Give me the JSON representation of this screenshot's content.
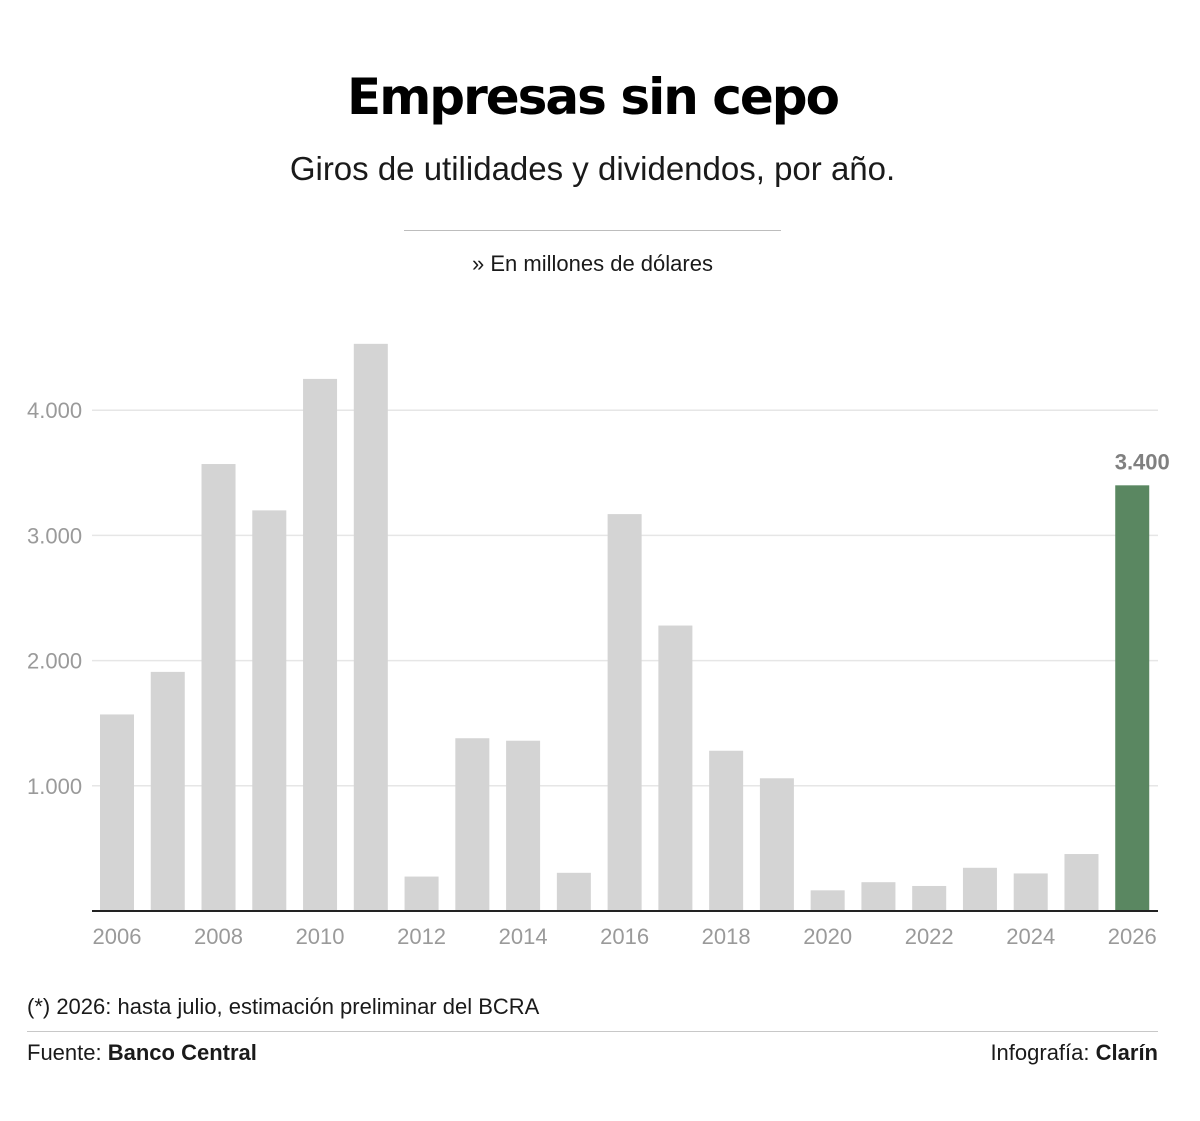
{
  "header": {
    "title": "Empresas sin cepo",
    "subtitle": "Giros de utilidades y dividendos, por año.",
    "unit_note": "» En millones de dólares"
  },
  "chart_data": {
    "type": "bar",
    "categories": [
      "2006",
      "2007",
      "2008",
      "2009",
      "2010",
      "2011",
      "2012",
      "2013",
      "2014",
      "2015",
      "2016",
      "2017",
      "2018",
      "2019",
      "2020",
      "2021",
      "2022",
      "2023",
      "2024",
      "2025",
      "2026"
    ],
    "values": [
      1570,
      1910,
      3570,
      3200,
      4250,
      4530,
      275,
      1380,
      1360,
      305,
      3170,
      2280,
      1280,
      1060,
      165,
      230,
      200,
      345,
      300,
      455,
      3400
    ],
    "x_tick_labels": [
      "2006",
      "2008",
      "2010",
      "2012",
      "2014",
      "2016",
      "2018",
      "2020",
      "2022",
      "2024",
      "2026"
    ],
    "y_ticks": [
      1000,
      2000,
      3000,
      4000
    ],
    "y_tick_labels": [
      "1.000",
      "2.000",
      "3.000",
      "4.000"
    ],
    "ylim": [
      0,
      4800
    ],
    "highlight": {
      "category": "2026",
      "label": "3.400"
    },
    "grid": true,
    "colors": {
      "bar": "#d4d4d4",
      "highlight": "#5a8761",
      "grid": "#e6e6e6",
      "axis": "#222222",
      "tick_text": "#9a9a9a",
      "label_text": "#808080"
    }
  },
  "footer": {
    "note": "(*) 2026: hasta julio, estimación preliminar del BCRA",
    "source_label": "Fuente:",
    "source_value": "Banco Central",
    "credit_label": "Infografía:",
    "credit_value": "Clarín"
  }
}
